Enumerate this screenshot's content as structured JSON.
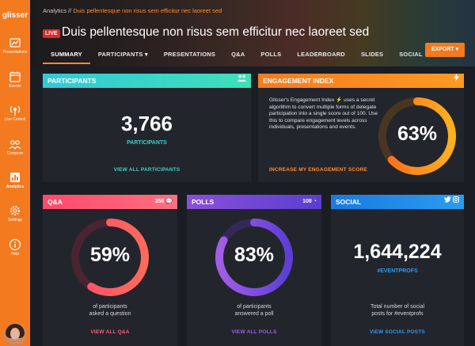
{
  "app": {
    "logo": "glisser"
  },
  "sidebar": {
    "items": [
      {
        "label": "Presentations",
        "icon": "presentation-icon"
      },
      {
        "label": "Events",
        "icon": "calendar-icon"
      },
      {
        "label": "Live Control",
        "icon": "broadcast-icon"
      },
      {
        "label": "Compere",
        "icon": "people-icon"
      },
      {
        "label": "Analytics",
        "icon": "analytics-icon"
      },
      {
        "label": "Settings",
        "icon": "gear-icon"
      },
      {
        "label": "Help",
        "icon": "info-icon"
      }
    ]
  },
  "header": {
    "breadcrumb_root": "Analytics // ",
    "breadcrumb_current": "Duis pellentesque non risus sem efficitur nec laoreet sed",
    "live_badge": "LIVE",
    "title": "Duis pellentesque non risus sem efficitur nec laoreet sed",
    "export_label": "EXPORT ▾",
    "tabs": [
      "SUMMARY",
      "PARTICIPANTS ▾",
      "PRESENTATIONS",
      "Q&A",
      "POLLS",
      "LEADERBOARD",
      "SLIDES",
      "SOCIAL"
    ]
  },
  "cards": {
    "participants": {
      "title": "PARTICIPANTS",
      "value": "3,766",
      "value_label": "PARTICIPANTS",
      "link": "VIEW ALL PARTICIPANTS"
    },
    "engagement": {
      "title": "ENGAGEMENT INDEX",
      "description_pre": "Glisser's Engagement Index",
      "description_post": "uses a secret algorithm to convert multiple forms of delegate participation into a single score out of 100. Use this to compare engagement levels across individuals, presentations and events.",
      "value": "63%",
      "percent": 63,
      "link": "INCREASE MY ENGAGEMENT SCORE"
    },
    "qa": {
      "title": "Q&A",
      "count": "356",
      "value": "59%",
      "percent": 59,
      "desc1": "of participants",
      "desc2": "asked a question",
      "link": "VIEW ALL Q&A"
    },
    "polls": {
      "title": "POLLS",
      "count": "108",
      "value": "83%",
      "percent": 83,
      "desc1": "of participants",
      "desc2": "answered a poll",
      "link": "VIEW ALL POLLS"
    },
    "social": {
      "title": "SOCIAL",
      "value": "1,644,224",
      "hashtag": "#EVENTPROFS",
      "desc1": "Total number of social",
      "desc2": "posts for #eventprofs",
      "link": "VIEW SOCIAL POSTS"
    }
  },
  "colors": {
    "accent": "#f37a1f",
    "teal": "#3fd3c6",
    "pink": "#ff4f6e",
    "purple": "#7a54e0",
    "blue": "#1e90ff"
  }
}
